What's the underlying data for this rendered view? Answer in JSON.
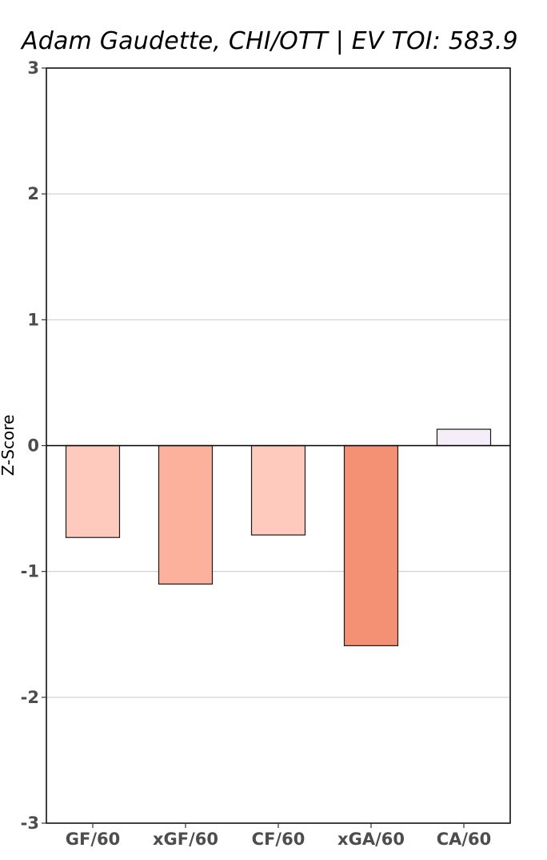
{
  "chart_data": {
    "type": "bar",
    "title": "Adam Gaudette, CHI/OTT  |  EV TOI: 583.9",
    "xlabel": "",
    "ylabel": "Z-Score",
    "categories": [
      "GF/60",
      "xGF/60",
      "CF/60",
      "xGA/60",
      "CA/60"
    ],
    "values": [
      -0.73,
      -1.1,
      -0.71,
      -1.59,
      0.13
    ],
    "colors": [
      "#fdcabd",
      "#fbb19c",
      "#fdcabd",
      "#f49175",
      "#f5eef8"
    ],
    "ylim": [
      -3,
      3
    ],
    "yticks": [
      "3",
      "2",
      "1",
      "0",
      "-1",
      "-2",
      "-3"
    ],
    "ytick_values": [
      3,
      2,
      1,
      0,
      -1,
      -2,
      -3
    ],
    "grid": "horizontal",
    "zero_line": true
  }
}
